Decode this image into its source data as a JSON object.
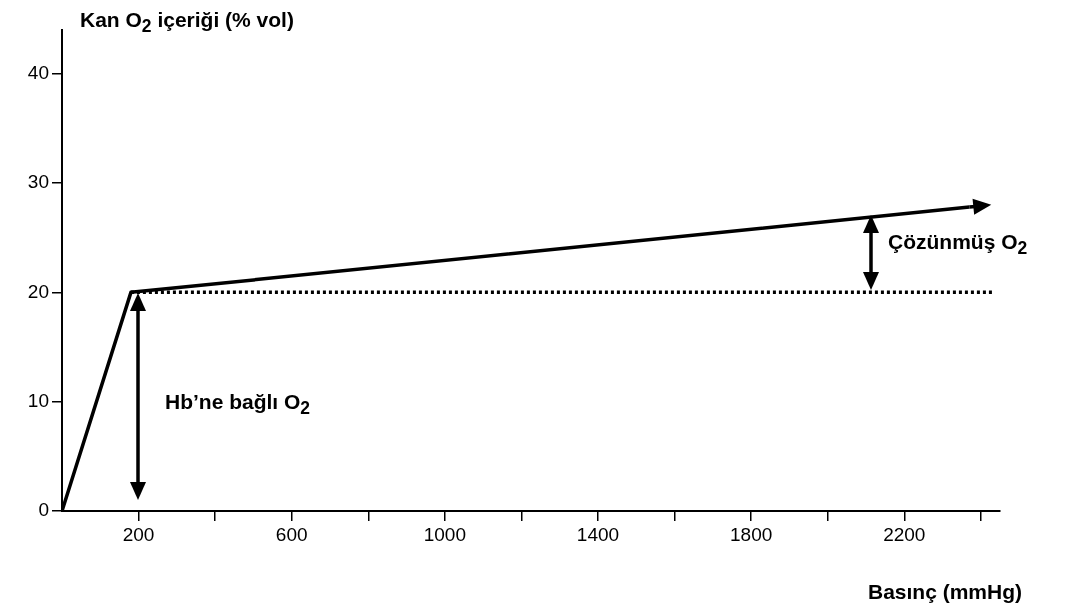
{
  "chart_data": {
    "type": "line",
    "xlabel": "Basınç (mmHg)",
    "ylabel": "Kan O$_{2}$ içeriği (% vol)",
    "xlim": [
      0,
      2450
    ],
    "ylim": [
      0,
      44
    ],
    "xticks": [
      200,
      {
        "value": 400,
        "label": null
      },
      600,
      {
        "value": 800,
        "label": null
      },
      1000,
      {
        "value": 1200,
        "label": null
      },
      1400,
      {
        "value": 1600,
        "label": null
      },
      1800,
      {
        "value": 2000,
        "label": null
      },
      2200,
      {
        "value": 2400,
        "label": null
      }
    ],
    "yticks": [
      0,
      10,
      20,
      30,
      40
    ],
    "grid": false,
    "legend": false,
    "marker": "none",
    "series": [
      {
        "color": "#000000",
        "x": [
          0,
          180,
          2370
        ],
        "values": [
          0,
          20,
          27.8
        ],
        "line_style": "solid"
      },
      {
        "color": "#000000",
        "x": [
          180,
          2430
        ],
        "values": [
          20,
          20
        ],
        "line_style": "dotted"
      }
    ],
    "annotations": [
      "Hb’ne bağlı O$_{2}$",
      "Çözünmüş O$_{2}$"
    ]
  }
}
